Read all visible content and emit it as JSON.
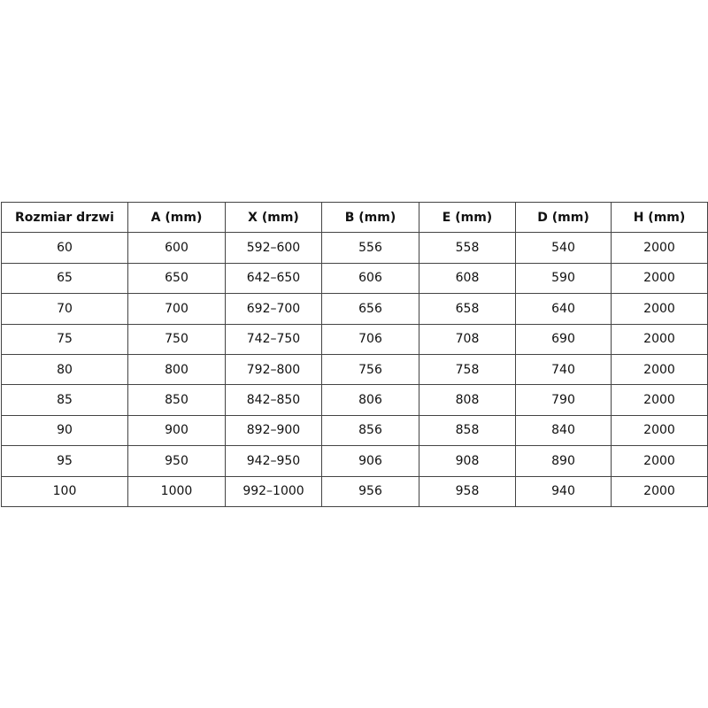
{
  "table": {
    "headers": [
      "Rozmiar drzwi",
      "A (mm)",
      "X (mm)",
      "B (mm)",
      "E (mm)",
      "D (mm)",
      "H (mm)"
    ],
    "rows": [
      [
        "60",
        "600",
        "592–600",
        "556",
        "558",
        "540",
        "2000"
      ],
      [
        "65",
        "650",
        "642–650",
        "606",
        "608",
        "590",
        "2000"
      ],
      [
        "70",
        "700",
        "692–700",
        "656",
        "658",
        "640",
        "2000"
      ],
      [
        "75",
        "750",
        "742–750",
        "706",
        "708",
        "690",
        "2000"
      ],
      [
        "80",
        "800",
        "792–800",
        "756",
        "758",
        "740",
        "2000"
      ],
      [
        "85",
        "850",
        "842–850",
        "806",
        "808",
        "790",
        "2000"
      ],
      [
        "90",
        "900",
        "892–900",
        "856",
        "858",
        "840",
        "2000"
      ],
      [
        "95",
        "950",
        "942–950",
        "906",
        "908",
        "890",
        "2000"
      ],
      [
        "100",
        "1000",
        "992–1000",
        "956",
        "958",
        "940",
        "2000"
      ]
    ]
  }
}
